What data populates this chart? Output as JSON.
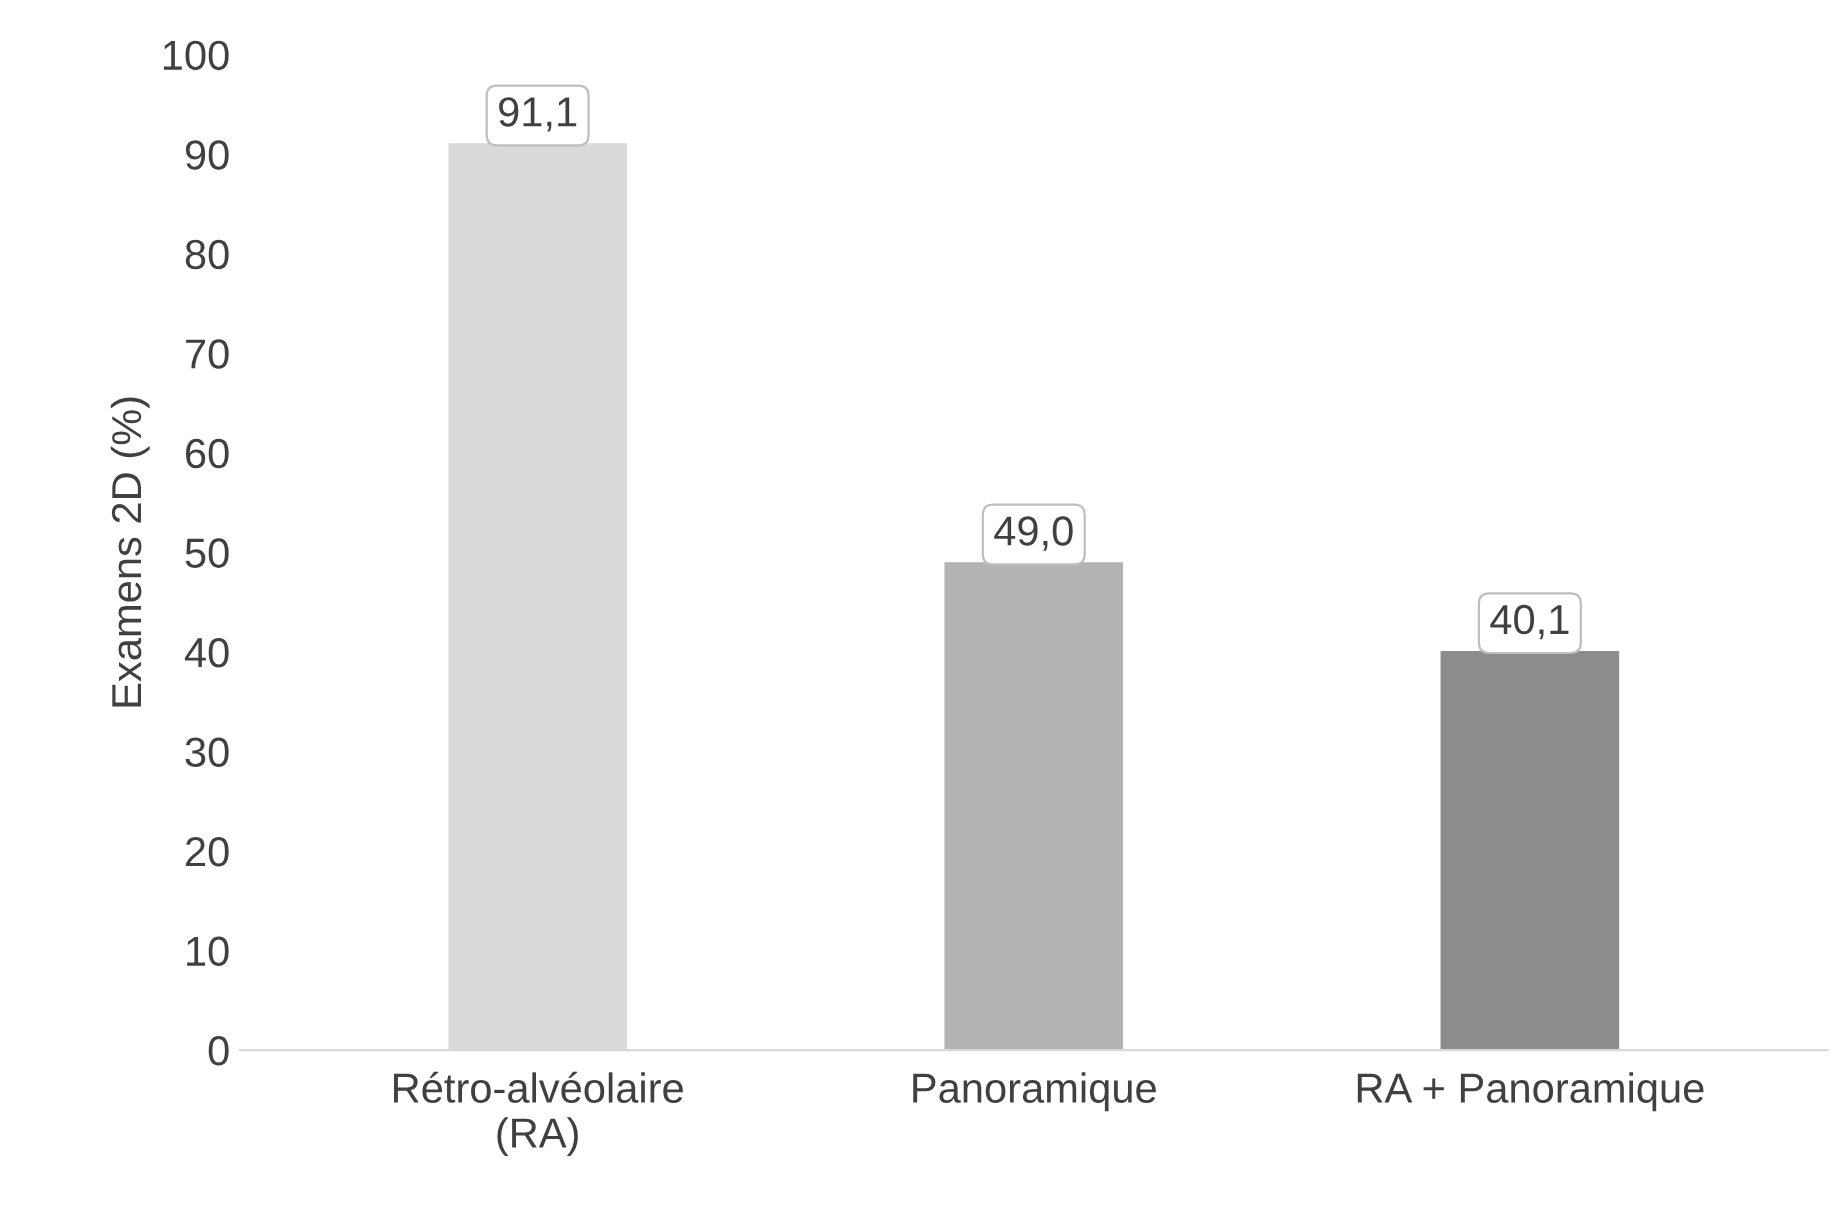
{
  "chart_data": {
    "type": "bar",
    "ylabel": "Examens 2D (%)",
    "categories": [
      "Rétro-alvéolaire\n(RA)",
      "Panoramique",
      "RA + Panoramique"
    ],
    "values": [
      91.1,
      49.0,
      40.1
    ],
    "colors": [
      "#d9d9d9",
      "#b3b3b3",
      "#8c8c8c"
    ],
    "value_labels": [
      "91,1",
      "49,0",
      "40,1"
    ],
    "ylim": [
      0,
      100
    ],
    "yticks": [
      0,
      10,
      20,
      30,
      40,
      50,
      60,
      70,
      80,
      90,
      100
    ],
    "grid": false
  }
}
